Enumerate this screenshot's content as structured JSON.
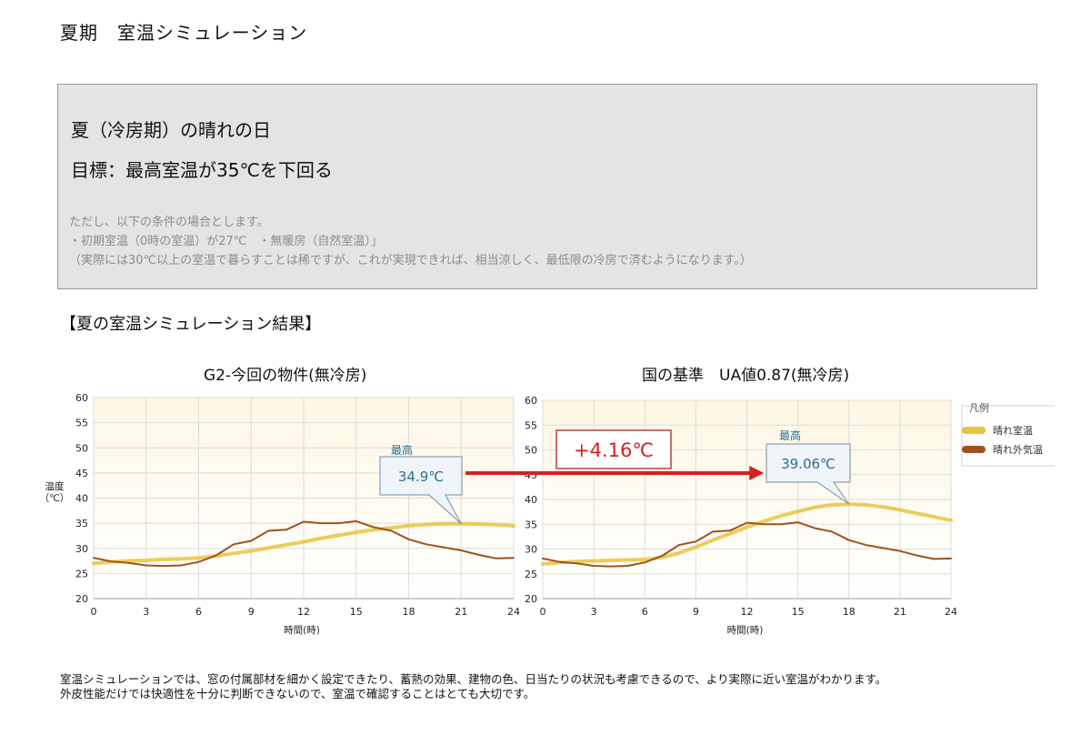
{
  "page": {
    "title": "夏期　室温シミュレーション",
    "goal_box": {
      "line1": "夏（冷房期）の晴れの日",
      "line2": "目標：最高室温が35℃を下回る",
      "conditions": [
        "ただし、以下の条件の場合とします。",
        "・初期室温（0時の室温）が27℃　・無暖房（自然室温）」",
        "（実際には30℃以上の室温で暮らすことは稀ですが、これが実現できれば、相当涼しく、最低限の冷房で済むようになります。）"
      ]
    },
    "section_heading": "【夏の室温シミュレーション結果】",
    "footer": [
      "室温シミュレーションでは、窓の付属部材を細かく設定できたり、蓄熱の効果、建物の色、日当たりの状況も考慮できるので、より実際に近い室温がわかります。",
      "外皮性能だけでは快適性を十分に判断できないので、室温で確認することはとても大切です。"
    ],
    "difference_label": "+4.16℃",
    "colors": {
      "sunny_room": "#e8c440",
      "outside_air": "#a0521e",
      "callout_text": "#2f6f8f",
      "arrow": "#d61f1f",
      "plot_bg_top": "#fdf7e3",
      "plot_bg_bottom": "#ffffff"
    }
  },
  "chart_data": [
    {
      "type": "line",
      "title": "G2-今回の物件(無冷房)",
      "ylabel": "温度\n（℃）",
      "xlabel": "時間(時)",
      "xlim": [
        0,
        24
      ],
      "ylim": [
        20,
        60
      ],
      "x_ticks": [
        0,
        3,
        6,
        9,
        12,
        15,
        18,
        21,
        24
      ],
      "y_ticks": [
        20,
        25,
        30,
        35,
        40,
        45,
        50,
        55,
        60
      ],
      "grid": true,
      "annotation": {
        "label": "最高",
        "value": "34.9℃",
        "x": 21,
        "y": 34.9
      },
      "series": [
        {
          "name": "晴れ室温",
          "color": "#e8c440",
          "x": [
            0,
            1,
            2,
            3,
            4,
            5,
            6,
            7,
            8,
            9,
            10,
            11,
            12,
            13,
            14,
            15,
            16,
            17,
            18,
            19,
            20,
            21,
            22,
            23,
            24
          ],
          "y": [
            27.0,
            27.3,
            27.5,
            27.6,
            27.8,
            27.9,
            28.1,
            28.5,
            29.0,
            29.5,
            30.1,
            30.7,
            31.3,
            32.0,
            32.6,
            33.2,
            33.7,
            34.1,
            34.5,
            34.75,
            34.88,
            34.9,
            34.85,
            34.7,
            34.5
          ]
        },
        {
          "name": "晴れ外気温",
          "color": "#a0521e",
          "x": [
            0,
            1,
            2,
            3,
            4,
            5,
            6,
            7,
            8,
            9,
            10,
            11,
            12,
            13,
            14,
            15,
            16,
            17,
            18,
            19,
            20,
            21,
            22,
            23,
            24
          ],
          "y": [
            28.1,
            27.4,
            27.1,
            26.6,
            26.5,
            26.6,
            27.3,
            28.6,
            30.8,
            31.5,
            33.5,
            33.7,
            35.3,
            35.0,
            35.0,
            35.4,
            34.2,
            33.5,
            31.8,
            30.8,
            30.2,
            29.6,
            28.7,
            28.0,
            28.1
          ]
        }
      ]
    },
    {
      "type": "line",
      "title": "国の基準　UA値0.87(無冷房)",
      "ylabel": "",
      "xlabel": "時間(時)",
      "xlim": [
        0,
        24
      ],
      "ylim": [
        20,
        60
      ],
      "x_ticks": [
        0,
        3,
        6,
        9,
        12,
        15,
        18,
        21,
        24
      ],
      "y_ticks": [
        20,
        25,
        30,
        35,
        40,
        45,
        50,
        55,
        60
      ],
      "grid": true,
      "legend": {
        "title": "凡例",
        "position": "right"
      },
      "annotation": {
        "label": "最高",
        "value": "39.06℃",
        "x": 18,
        "y": 39.06
      },
      "series": [
        {
          "name": "晴れ室温",
          "color": "#e8c440",
          "x": [
            0,
            1,
            2,
            3,
            4,
            5,
            6,
            7,
            8,
            9,
            10,
            11,
            12,
            13,
            14,
            15,
            16,
            17,
            18,
            19,
            20,
            21,
            22,
            23,
            24
          ],
          "y": [
            27.0,
            27.3,
            27.5,
            27.6,
            27.7,
            27.8,
            27.9,
            28.3,
            29.2,
            30.4,
            31.8,
            33.1,
            34.4,
            35.6,
            36.7,
            37.6,
            38.4,
            38.9,
            39.06,
            38.9,
            38.5,
            37.9,
            37.2,
            36.5,
            35.8
          ]
        },
        {
          "name": "晴れ外気温",
          "color": "#a0521e",
          "x": [
            0,
            1,
            2,
            3,
            4,
            5,
            6,
            7,
            8,
            9,
            10,
            11,
            12,
            13,
            14,
            15,
            16,
            17,
            18,
            19,
            20,
            21,
            22,
            23,
            24
          ],
          "y": [
            28.1,
            27.4,
            27.1,
            26.6,
            26.5,
            26.6,
            27.3,
            28.6,
            30.8,
            31.5,
            33.5,
            33.7,
            35.3,
            35.0,
            35.0,
            35.4,
            34.2,
            33.5,
            31.8,
            30.8,
            30.2,
            29.6,
            28.7,
            28.0,
            28.1
          ]
        }
      ]
    }
  ]
}
